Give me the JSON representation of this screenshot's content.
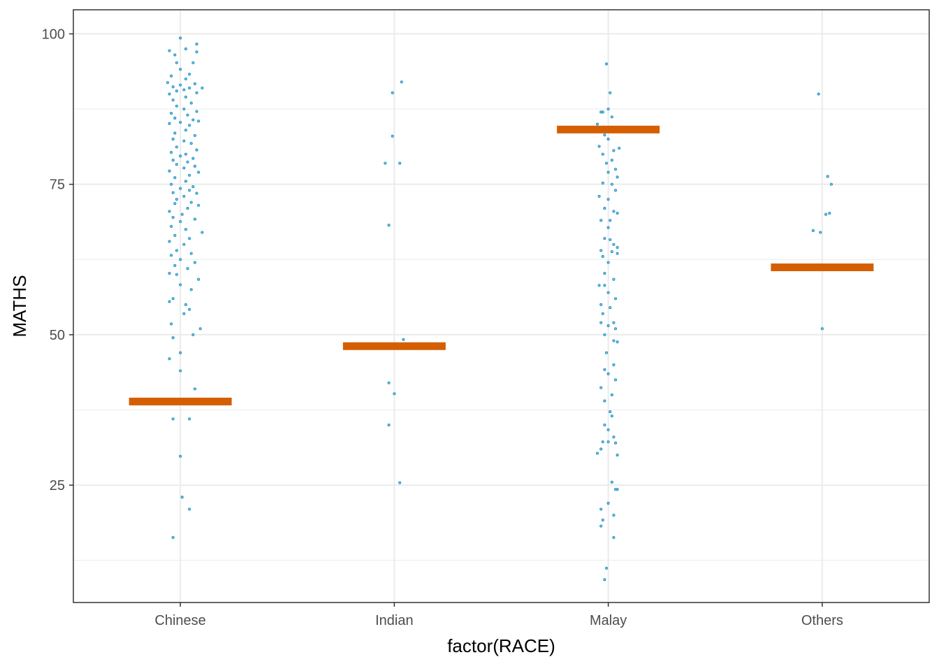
{
  "chart_data": {
    "type": "scatter",
    "title": "",
    "xlabel": "factor(RACE)",
    "ylabel": "MATHS",
    "categories": [
      "Chinese",
      "Indian",
      "Malay",
      "Others"
    ],
    "ylim": [
      5.5,
      104
    ],
    "y_ticks": [
      25,
      50,
      75,
      100
    ],
    "y_tick_labels": [
      "25",
      "50",
      "75",
      "100"
    ],
    "grid": true,
    "colors": {
      "points": "#1b8fc4",
      "summary": "#d55e00",
      "grid": "#ebebeb",
      "panel_border": "#333333"
    },
    "summary_values": [
      38.9,
      48.1,
      84.1,
      61.2
    ],
    "series": [
      {
        "category": "Chinese",
        "points": [
          [
            0.0,
            99.3
          ],
          [
            0.09,
            98.3
          ],
          [
            -0.06,
            97.2
          ],
          [
            0.03,
            97.5
          ],
          [
            0.09,
            97.0
          ],
          [
            -0.03,
            96.5
          ],
          [
            0.07,
            95.2
          ],
          [
            -0.02,
            95.2
          ],
          [
            0.0,
            94.1
          ],
          [
            0.05,
            93.3
          ],
          [
            -0.05,
            93.0
          ],
          [
            0.03,
            92.5
          ],
          [
            -0.07,
            91.9
          ],
          [
            0.08,
            91.7
          ],
          [
            0.0,
            91.5
          ],
          [
            -0.04,
            91.2
          ],
          [
            0.05,
            91.0
          ],
          [
            0.12,
            91.0
          ],
          [
            0.02,
            90.7
          ],
          [
            -0.02,
            90.5
          ],
          [
            0.09,
            90.2
          ],
          [
            -0.06,
            90.0
          ],
          [
            0.03,
            89.5
          ],
          [
            -0.04,
            89.0
          ],
          [
            0.06,
            88.5
          ],
          [
            -0.02,
            88.0
          ],
          [
            0.02,
            87.5
          ],
          [
            0.09,
            87.1
          ],
          [
            -0.05,
            86.8
          ],
          [
            0.04,
            86.5
          ],
          [
            -0.03,
            86.0
          ],
          [
            0.07,
            85.7
          ],
          [
            0.1,
            85.5
          ],
          [
            0.0,
            85.3
          ],
          [
            -0.06,
            85.1
          ],
          [
            0.05,
            84.8
          ],
          [
            0.03,
            84.0
          ],
          [
            -0.03,
            83.5
          ],
          [
            0.08,
            83.1
          ],
          [
            -0.04,
            82.5
          ],
          [
            0.02,
            82.2
          ],
          [
            0.06,
            81.8
          ],
          [
            -0.02,
            81.2
          ],
          [
            0.09,
            80.7
          ],
          [
            -0.05,
            80.3
          ],
          [
            0.03,
            80.0
          ],
          [
            0.0,
            79.7
          ],
          [
            0.07,
            79.3
          ],
          [
            -0.04,
            79.0
          ],
          [
            0.04,
            78.7
          ],
          [
            -0.02,
            78.3
          ],
          [
            0.08,
            78.0
          ],
          [
            0.02,
            77.7
          ],
          [
            -0.06,
            77.2
          ],
          [
            0.1,
            77.0
          ],
          [
            0.05,
            76.5
          ],
          [
            -0.03,
            76.1
          ],
          [
            0.03,
            75.5
          ],
          [
            -0.05,
            75.0
          ],
          [
            0.07,
            74.6
          ],
          [
            0.0,
            74.3
          ],
          [
            0.05,
            74.0
          ],
          [
            -0.04,
            73.6
          ],
          [
            0.09,
            73.5
          ],
          [
            0.02,
            73.0
          ],
          [
            -0.02,
            72.5
          ],
          [
            0.06,
            72.0
          ],
          [
            -0.03,
            71.8
          ],
          [
            0.1,
            71.5
          ],
          [
            0.04,
            71.0
          ],
          [
            -0.06,
            70.5
          ],
          [
            0.01,
            70.0
          ],
          [
            -0.04,
            69.5
          ],
          [
            0.08,
            69.2
          ],
          [
            0.0,
            68.8
          ],
          [
            -0.05,
            68.0
          ],
          [
            0.03,
            67.5
          ],
          [
            0.12,
            67.0
          ],
          [
            -0.03,
            66.5
          ],
          [
            0.05,
            66.0
          ],
          [
            -0.06,
            65.5
          ],
          [
            0.02,
            65.0
          ],
          [
            -0.02,
            64.0
          ],
          [
            0.06,
            63.5
          ],
          [
            -0.05,
            63.2
          ],
          [
            0.0,
            62.5
          ],
          [
            0.08,
            62.0
          ],
          [
            -0.03,
            61.5
          ],
          [
            0.04,
            61.0
          ],
          [
            -0.06,
            60.2
          ],
          [
            -0.02,
            60.0
          ],
          [
            0.1,
            59.2
          ],
          [
            0.0,
            58.3
          ],
          [
            0.06,
            57.5
          ],
          [
            -0.04,
            56.0
          ],
          [
            0.03,
            55.0
          ],
          [
            -0.06,
            55.5
          ],
          [
            0.05,
            54.2
          ],
          [
            0.02,
            53.5
          ],
          [
            -0.05,
            51.8
          ],
          [
            0.11,
            51.0
          ],
          [
            0.07,
            50.0
          ],
          [
            -0.04,
            49.5
          ],
          [
            0.0,
            47.0
          ],
          [
            -0.06,
            46.0
          ],
          [
            0.0,
            44.0
          ],
          [
            0.08,
            41.0
          ],
          [
            -0.03,
            38.5
          ],
          [
            -0.04,
            36.0
          ],
          [
            0.05,
            36.0
          ],
          [
            0.0,
            29.8
          ],
          [
            0.01,
            23.0
          ],
          [
            0.05,
            21.0
          ],
          [
            -0.04,
            16.3
          ]
        ]
      },
      {
        "category": "Indian",
        "points": [
          [
            0.04,
            92.0
          ],
          [
            -0.01,
            90.2
          ],
          [
            -0.01,
            83.0
          ],
          [
            -0.05,
            78.5
          ],
          [
            0.03,
            78.5
          ],
          [
            -0.03,
            68.2
          ],
          [
            0.05,
            49.2
          ],
          [
            -0.03,
            42.0
          ],
          [
            0.0,
            40.2
          ],
          [
            -0.03,
            35.0
          ],
          [
            0.03,
            25.4
          ]
        ]
      },
      {
        "category": "Malay",
        "points": [
          [
            -0.01,
            95.0
          ],
          [
            0.01,
            90.2
          ],
          [
            -0.04,
            87.0
          ],
          [
            0.0,
            87.5
          ],
          [
            -0.03,
            87.0
          ],
          [
            0.02,
            86.2
          ],
          [
            -0.06,
            85.0
          ],
          [
            0.05,
            84.5
          ],
          [
            -0.02,
            83.2
          ],
          [
            0.0,
            82.5
          ],
          [
            0.06,
            81.0
          ],
          [
            -0.05,
            81.3
          ],
          [
            0.03,
            80.6
          ],
          [
            -0.03,
            80.0
          ],
          [
            0.02,
            79.0
          ],
          [
            -0.01,
            78.5
          ],
          [
            0.04,
            77.5
          ],
          [
            0.0,
            77.0
          ],
          [
            0.05,
            76.2
          ],
          [
            -0.03,
            75.2
          ],
          [
            0.02,
            75.0
          ],
          [
            0.04,
            74.0
          ],
          [
            -0.05,
            73.0
          ],
          [
            0.0,
            72.5
          ],
          [
            -0.02,
            71.0
          ],
          [
            0.03,
            70.5
          ],
          [
            0.05,
            70.2
          ],
          [
            -0.04,
            69.0
          ],
          [
            0.01,
            69.0
          ],
          [
            0.0,
            67.8
          ],
          [
            -0.02,
            66.0
          ],
          [
            0.01,
            65.8
          ],
          [
            0.03,
            65.0
          ],
          [
            0.05,
            64.5
          ],
          [
            -0.04,
            64.0
          ],
          [
            0.02,
            63.8
          ],
          [
            -0.03,
            63.0
          ],
          [
            0.05,
            63.5
          ],
          [
            0.0,
            62.0
          ],
          [
            -0.02,
            60.2
          ],
          [
            0.03,
            59.2
          ],
          [
            -0.05,
            58.2
          ],
          [
            -0.02,
            58.2
          ],
          [
            0.0,
            57.0
          ],
          [
            0.04,
            56.0
          ],
          [
            -0.04,
            55.0
          ],
          [
            0.01,
            54.5
          ],
          [
            -0.03,
            53.5
          ],
          [
            0.03,
            52.0
          ],
          [
            -0.04,
            52.0
          ],
          [
            0.0,
            51.5
          ],
          [
            0.04,
            51.0
          ],
          [
            -0.02,
            50.0
          ],
          [
            0.03,
            49.0
          ],
          [
            0.05,
            48.8
          ],
          [
            -0.01,
            47.0
          ],
          [
            0.03,
            45.0
          ],
          [
            -0.02,
            44.2
          ],
          [
            0.0,
            43.5
          ],
          [
            0.04,
            42.5
          ],
          [
            -0.04,
            41.2
          ],
          [
            0.02,
            40.0
          ],
          [
            -0.02,
            39.0
          ],
          [
            0.01,
            37.2
          ],
          [
            0.02,
            36.5
          ],
          [
            -0.02,
            35.0
          ],
          [
            0.0,
            34.2
          ],
          [
            0.03,
            33.0
          ],
          [
            -0.03,
            32.2
          ],
          [
            0.0,
            32.2
          ],
          [
            0.04,
            32.0
          ],
          [
            -0.04,
            31.0
          ],
          [
            -0.06,
            30.3
          ],
          [
            0.05,
            30.0
          ],
          [
            0.02,
            25.5
          ],
          [
            0.04,
            24.3
          ],
          [
            0.05,
            24.3
          ],
          [
            0.0,
            22.0
          ],
          [
            -0.04,
            21.0
          ],
          [
            0.03,
            20.0
          ],
          [
            -0.03,
            19.2
          ],
          [
            -0.04,
            18.2
          ],
          [
            0.03,
            16.3
          ],
          [
            -0.01,
            11.2
          ],
          [
            -0.02,
            9.3
          ]
        ]
      },
      {
        "category": "Others",
        "points": [
          [
            -0.02,
            90.0
          ],
          [
            0.03,
            76.3
          ],
          [
            0.05,
            75.0
          ],
          [
            0.04,
            70.2
          ],
          [
            0.02,
            70.0
          ],
          [
            -0.01,
            67.0
          ],
          [
            -0.05,
            67.3
          ],
          [
            0.0,
            51.0
          ]
        ]
      }
    ]
  }
}
